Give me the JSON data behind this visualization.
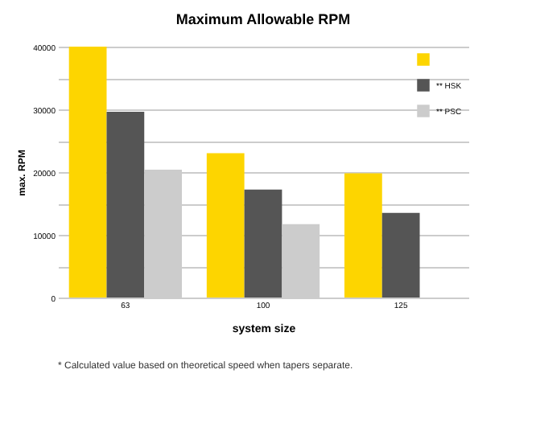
{
  "chart_data": {
    "type": "bar",
    "title": "Maximum Allowable RPM",
    "xlabel": "system size",
    "ylabel": "max. RPM",
    "categories": [
      "63",
      "100",
      "125"
    ],
    "series": [
      {
        "color": "#fdd500",
        "values": [
          40000,
          23000,
          19800
        ]
      },
      {
        "name": "** HSK",
        "color": "#555555",
        "values": [
          29600,
          17200,
          13500
        ]
      },
      {
        "name": "** PSC",
        "color": "#cccccc",
        "values": [
          20400,
          11700,
          null
        ]
      }
    ],
    "ylim": [
      0,
      40000
    ],
    "yticks": [
      0,
      {
        "value": 5000,
        "label": null
      },
      10000,
      {
        "value": 15000,
        "label": null
      },
      20000,
      {
        "value": 25000,
        "label": null
      },
      30000,
      {
        "value": 35000,
        "label": null
      },
      40000
    ],
    "grid": "y",
    "legend": "top right",
    "annotations": [
      "* Calculated value based on theoretical speed when tapers separate."
    ]
  }
}
